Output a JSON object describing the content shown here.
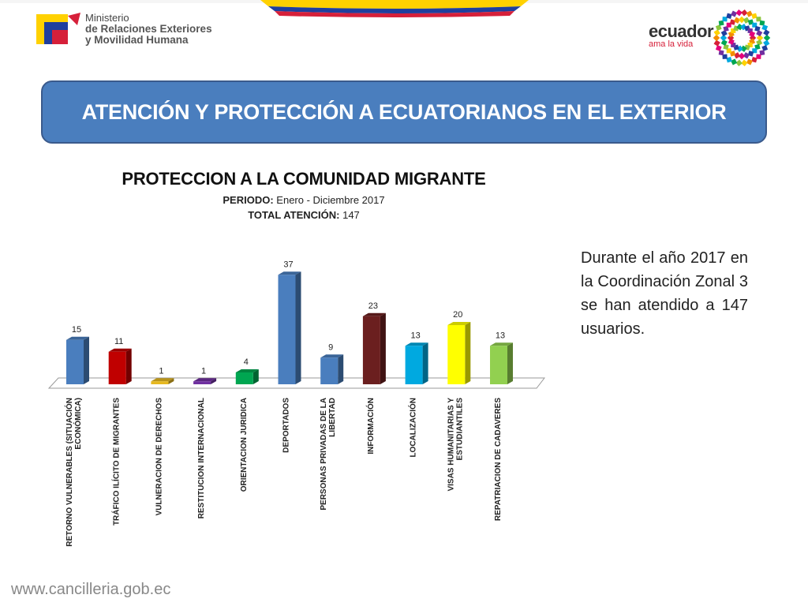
{
  "header": {
    "ministry_line1": "Ministerio",
    "ministry_line2": "de Relaciones Exteriores",
    "ministry_line3": "y Movilidad Humana",
    "brand_word": "ecuador",
    "brand_tagline": "ama la vida"
  },
  "banner": {
    "title": "ATENCIÓN Y PROTECCIÓN A ECUATORIANOS EN EL EXTERIOR"
  },
  "chart_data": {
    "type": "bar",
    "title": "PROTECCION A LA COMUNIDAD MIGRANTE",
    "subtitle_label_1": "PERIODO:",
    "subtitle_value_1": " Enero - Diciembre 2017",
    "subtitle_label_2": "TOTAL ATENCIÓN:",
    "subtitle_value_2": " 147",
    "categories": [
      "RETORNO VULNERABLES (SITUACIÓN ECONÓMICA)",
      "TRÁFICO ILÍCITO DE MIGRANTES",
      "VULNERACION DE DERECHOS",
      "RESTITUCION INTERNACIONAL",
      "ORIENTACION JURIDICA",
      "DEPORTADOS",
      "PERSONAS PRIVADAS DE LA LIBERTAD",
      "INFORMACIÓN",
      "LOCALIZACIÓN",
      "VISAS HUMANITARIAS Y ESTUDIANTILES",
      "REPATRIACION DE CADAVERES"
    ],
    "values": [
      15,
      11,
      1,
      1,
      4,
      37,
      9,
      23,
      13,
      20,
      13
    ],
    "colors": [
      "#4a7ebe",
      "#c00000",
      "#e6b820",
      "#7030a0",
      "#00a651",
      "#4a7ebe",
      "#4a7ebe",
      "#6b1f1f",
      "#00a9e0",
      "#ffff00",
      "#92d050"
    ],
    "ylim": [
      0,
      40
    ],
    "grid": false,
    "legend": "none"
  },
  "description": "Durante el año 2017 en la Coordinación Zonal 3 se han atendido a 147 usuarios.",
  "footer": {
    "url": "www.cancilleria.gob.ec"
  }
}
